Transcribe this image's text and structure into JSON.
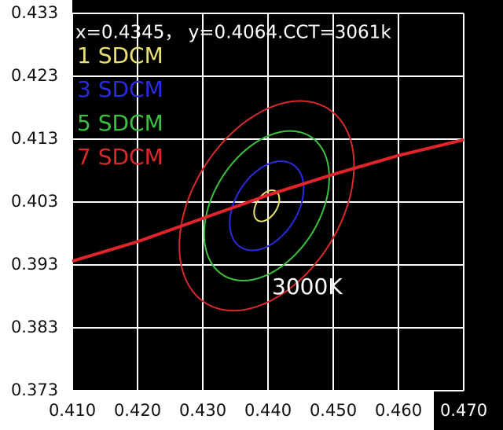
{
  "chart_data": {
    "type": "line",
    "header": "x=0.4345， y=0.4064.CCT=3061k",
    "annotation": "3000K",
    "xlim": [
      0.41,
      0.47
    ],
    "ylim": [
      0.373,
      0.433
    ],
    "xticks": [
      {
        "value": 0.41,
        "label": "0.410"
      },
      {
        "value": 0.42,
        "label": "0.420"
      },
      {
        "value": 0.43,
        "label": "0.430"
      },
      {
        "value": 0.44,
        "label": "0.440"
      },
      {
        "value": 0.45,
        "label": "0.450"
      },
      {
        "value": 0.46,
        "label": "0.460"
      },
      {
        "value": 0.47,
        "label": "0.470"
      }
    ],
    "yticks": [
      0.433,
      0.423,
      0.413,
      0.403,
      0.393,
      0.383,
      0.373
    ],
    "grid": true,
    "x": [
      0.41,
      0.42,
      0.43,
      0.44,
      0.45,
      0.46,
      0.47
    ],
    "series": [
      {
        "color": "#e0242a",
        "values": [
          0.3936,
          0.3967,
          0.4004,
          0.4041,
          0.4074,
          0.4104,
          0.4129
        ]
      }
    ],
    "ellipses": [
      {
        "name": "1 SDCM",
        "color": "#e8e070",
        "cx": 0.4398,
        "cy": 0.4024,
        "a": 0.0027,
        "b": 0.0016,
        "angle": 60
      },
      {
        "name": "3 SDCM",
        "color": "#2a2ae0",
        "cx": 0.4398,
        "cy": 0.4024,
        "a": 0.0077,
        "b": 0.0048,
        "angle": 60
      },
      {
        "name": "5 SDCM",
        "color": "#3cc040",
        "cx": 0.4398,
        "cy": 0.4024,
        "a": 0.0129,
        "b": 0.0082,
        "angle": 60
      },
      {
        "name": "7 SDCM",
        "color": "#d82a2a",
        "cx": 0.4398,
        "cy": 0.4024,
        "a": 0.0181,
        "b": 0.0114,
        "angle": 60
      }
    ]
  }
}
